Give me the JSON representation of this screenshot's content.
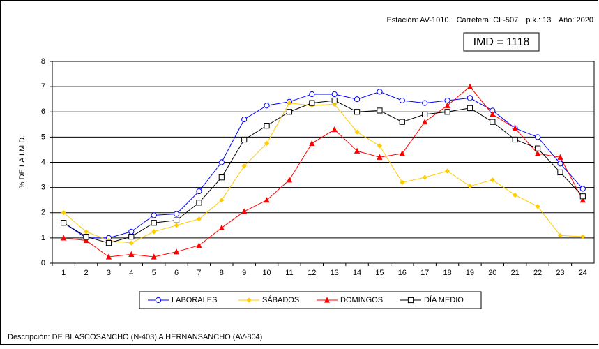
{
  "chart_data": {
    "type": "line",
    "header": [
      "Estación: AV-1010",
      "Carretera: CL-507",
      "p.k.: 13",
      "Año: 2020"
    ],
    "annotation": "IMD = 1118",
    "description": "Descripción: DE BLASCOSANCHO (N-403) A HERNANSANCHO (AV-804)",
    "y_label": "% DE LA I.M.D.",
    "categories": [
      "1",
      "2",
      "3",
      "4",
      "5",
      "6",
      "7",
      "8",
      "9",
      "10",
      "11",
      "12",
      "13",
      "14",
      "15",
      "16",
      "17",
      "18",
      "19",
      "20",
      "21",
      "22",
      "23",
      "24"
    ],
    "ylim": [
      0,
      8
    ],
    "yticks": [
      0,
      1,
      2,
      3,
      4,
      5,
      6,
      7,
      8
    ],
    "grid": true,
    "legend": "bottom",
    "series": [
      {
        "name": "LABORALES",
        "color": "#0000ff",
        "marker": "circle",
        "values": [
          1.6,
          1.0,
          1.0,
          1.25,
          1.9,
          1.95,
          2.85,
          4.0,
          5.7,
          6.25,
          6.4,
          6.7,
          6.7,
          6.5,
          6.8,
          6.45,
          6.35,
          6.45,
          6.55,
          6.05,
          5.35,
          5.0,
          3.95,
          2.95
        ]
      },
      {
        "name": "SÁBADOS",
        "color": "#ffcc00",
        "marker": "diamond",
        "values": [
          2.0,
          1.25,
          0.9,
          0.8,
          1.25,
          1.5,
          1.75,
          2.5,
          3.85,
          4.75,
          6.35,
          6.25,
          6.3,
          5.2,
          4.65,
          3.2,
          3.4,
          3.65,
          3.05,
          3.3,
          2.7,
          2.25,
          1.1,
          1.05
        ]
      },
      {
        "name": "DOMINGOS",
        "color": "#ff0000",
        "marker": "triangle",
        "values": [
          1.0,
          0.9,
          0.25,
          0.35,
          0.25,
          0.45,
          0.7,
          1.4,
          2.05,
          2.5,
          3.3,
          4.75,
          5.3,
          4.45,
          4.2,
          4.35,
          5.6,
          6.25,
          7.0,
          5.9,
          5.35,
          4.35,
          4.2,
          2.5
        ]
      },
      {
        "name": "DÍA MEDIO",
        "color": "#000000",
        "marker": "square",
        "values": [
          1.6,
          1.05,
          0.8,
          1.05,
          1.6,
          1.7,
          2.4,
          3.4,
          4.9,
          5.45,
          6.0,
          6.35,
          6.45,
          6.0,
          6.05,
          5.6,
          5.9,
          6.0,
          6.15,
          5.6,
          4.9,
          4.55,
          3.6,
          2.65
        ]
      }
    ]
  }
}
